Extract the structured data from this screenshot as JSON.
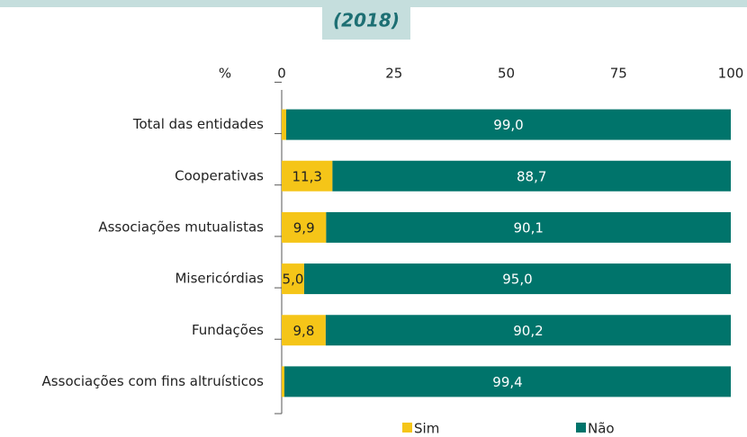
{
  "chart_data": {
    "type": "stacked-bar-horizontal",
    "title": "(2018)",
    "unit_label": "%",
    "categories": [
      "Total das entidades",
      "Cooperativas",
      "Associações mutualistas",
      "Misericórdias",
      "Fundações",
      "Associações com fins altruísticos"
    ],
    "series": [
      {
        "name": "Sim",
        "color": "#f5c518",
        "values": [
          1.0,
          11.3,
          9.9,
          5.0,
          9.8,
          0.6
        ],
        "value_labels": [
          null,
          "11,3",
          "9,9",
          "5,0",
          "9,8",
          null
        ]
      },
      {
        "name": "Não",
        "color": "#00746b",
        "values": [
          99.0,
          88.7,
          90.1,
          95.0,
          90.2,
          99.4
        ],
        "value_labels": [
          "99,0",
          "88,7",
          "90,1",
          "95,0",
          "90,2",
          "99,4"
        ]
      }
    ],
    "xlim": [
      0,
      100
    ],
    "xticks": [
      0,
      25,
      50,
      75,
      100
    ],
    "legend": "bottom"
  }
}
